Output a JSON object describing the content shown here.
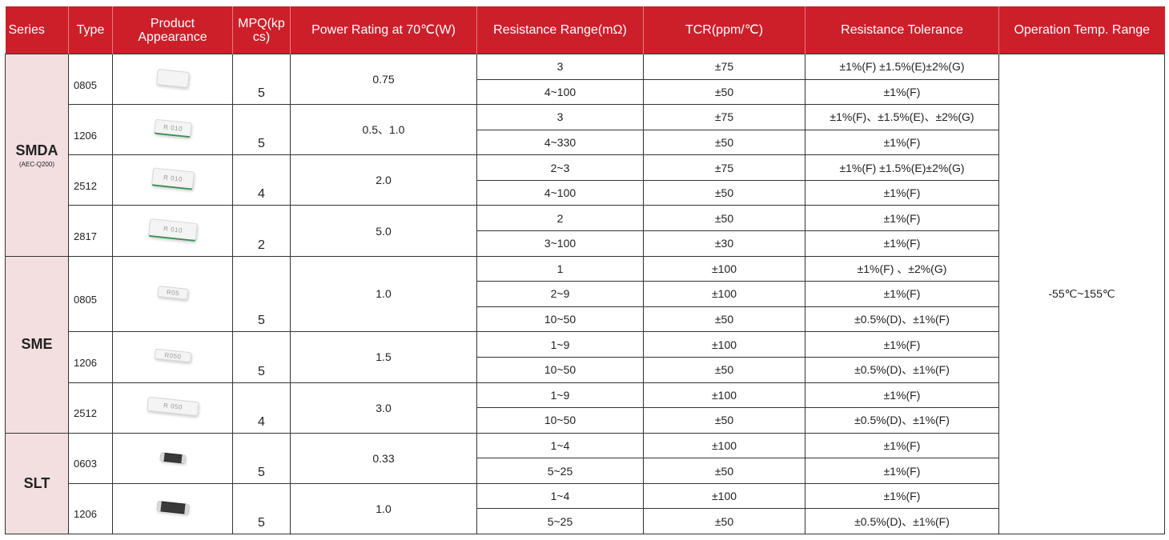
{
  "headers": {
    "series": "Series",
    "type": "Type",
    "product": "Product\nAppearance",
    "mpq": "MPQ(kp\ncs)",
    "power": "Power Rating at 70℃(W)",
    "resistance": "Resistance Range(mΩ)",
    "tcr": "TCR(ppm/℃)",
    "tolerance": "Resistance Tolerance",
    "operation": "Operation Temp. Range"
  },
  "operation_temp_range": "-55℃~155℃",
  "series": [
    {
      "name": "SMDA",
      "sub": "(AEC-Q200)",
      "types": [
        {
          "type": "0805",
          "chip": {
            "kind": "plain",
            "mark": ""
          },
          "mpq": "5",
          "power": "0.75",
          "rows": [
            {
              "range": "3",
              "tcr": "±75",
              "tol": "±1%(F) ±1.5%(E)±2%(G)"
            },
            {
              "range": "4~100",
              "tcr": "±50",
              "tol": "±1%(F)"
            }
          ]
        },
        {
          "type": "1206",
          "chip": {
            "kind": "edge",
            "mark": "R 010"
          },
          "mpq": "5",
          "power": "0.5、1.0",
          "rows": [
            {
              "range": "3",
              "tcr": "±75",
              "tol": "±1%(F)、±1.5%(E)、±2%(G)"
            },
            {
              "range": "4~330",
              "tcr": "±50",
              "tol": "±1%(F)"
            }
          ]
        },
        {
          "type": "2512",
          "chip": {
            "kind": "edge",
            "mark": "R 010"
          },
          "mpq": "4",
          "power": "2.0",
          "rows": [
            {
              "range": "2~3",
              "tcr": "±75",
              "tol": "±1%(F) ±1.5%(E)±2%(G)"
            },
            {
              "range": "4~100",
              "tcr": "±50",
              "tol": "±1%(F)"
            }
          ]
        },
        {
          "type": "2817",
          "chip": {
            "kind": "edge",
            "mark": "R 010"
          },
          "mpq": "2",
          "power": "5.0",
          "rows": [
            {
              "range": "2",
              "tcr": "±50",
              "tol": "±1%(F)"
            },
            {
              "range": "3~100",
              "tcr": "±30",
              "tol": "±1%(F)"
            }
          ]
        }
      ]
    },
    {
      "name": "SME",
      "sub": "",
      "types": [
        {
          "type": "0805",
          "chip": {
            "kind": "plain",
            "mark": "R05"
          },
          "mpq": "5",
          "power": "1.0",
          "rows": [
            {
              "range": "1",
              "tcr": "±100",
              "tol": "±1%(F) 、±2%(G)"
            },
            {
              "range": "2~9",
              "tcr": "±100",
              "tol": "±1%(F)"
            },
            {
              "range": "10~50",
              "tcr": "±50",
              "tol": "±0.5%(D)、±1%(F)"
            }
          ]
        },
        {
          "type": "1206",
          "chip": {
            "kind": "plain",
            "mark": "R050"
          },
          "mpq": "5",
          "power": "1.5",
          "rows": [
            {
              "range": "1~9",
              "tcr": "±100",
              "tol": "±1%(F)"
            },
            {
              "range": "10~50",
              "tcr": "±50",
              "tol": "±0.5%(D)、±1%(F)"
            }
          ]
        },
        {
          "type": "2512",
          "chip": {
            "kind": "plain",
            "mark": "R 050"
          },
          "mpq": "4",
          "power": "3.0",
          "rows": [
            {
              "range": "1~9",
              "tcr": "±100",
              "tol": "±1%(F)"
            },
            {
              "range": "10~50",
              "tcr": "±50",
              "tol": "±0.5%(D)、±1%(F)"
            }
          ]
        }
      ]
    },
    {
      "name": "SLT",
      "sub": "",
      "types": [
        {
          "type": "0603",
          "chip": {
            "kind": "dark",
            "mark": ""
          },
          "mpq": "5",
          "power": "0.33",
          "rows": [
            {
              "range": "1~4",
              "tcr": "±100",
              "tol": "±1%(F)"
            },
            {
              "range": "5~25",
              "tcr": "±50",
              "tol": "±1%(F)"
            }
          ]
        },
        {
          "type": "1206",
          "chip": {
            "kind": "dark",
            "mark": ""
          },
          "mpq": "5",
          "power": "1.0",
          "rows": [
            {
              "range": "1~4",
              "tcr": "±100",
              "tol": "±1%(F)"
            },
            {
              "range": "5~25",
              "tcr": "±50",
              "tol": "±0.5%(D)、±1%(F)"
            }
          ]
        }
      ]
    }
  ]
}
